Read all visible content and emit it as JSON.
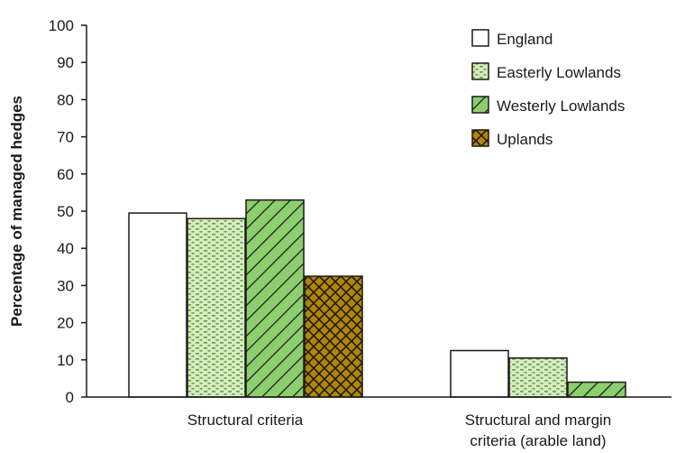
{
  "chart_data": {
    "type": "bar",
    "title": "",
    "xlabel": "",
    "ylabel": "Percentage of managed hedges",
    "ylim": [
      0,
      100
    ],
    "yticks": [
      0,
      10,
      20,
      30,
      40,
      50,
      60,
      70,
      80,
      90,
      100
    ],
    "grid": false,
    "legend_position": "top-right",
    "categories": [
      [
        "Structural criteria"
      ],
      [
        "Structural and margin",
        "criteria (arable land)"
      ]
    ],
    "series": [
      {
        "name": "England",
        "values": [
          49.5,
          12.5
        ],
        "color": "#ffffff",
        "pattern": "none"
      },
      {
        "name": "Easterly Lowlands",
        "values": [
          48,
          10.5
        ],
        "color": "#d6ecc0",
        "pattern": "dots"
      },
      {
        "name": "Westerly Lowlands",
        "values": [
          53,
          4
        ],
        "color": "#8ccf6e",
        "pattern": "diagonal-hatch"
      },
      {
        "name": "Uplands",
        "values": [
          32.5,
          0
        ],
        "color": "#b38600",
        "pattern": "cross-hatch"
      }
    ]
  }
}
